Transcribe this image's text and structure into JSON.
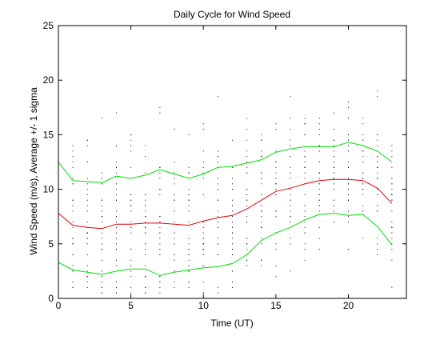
{
  "chart_data": {
    "type": "line",
    "title": "Daily Cycle for Wind Speed",
    "xlabel": "Time (UT)",
    "ylabel": "Wind Speed (m/s), Average +/- 1 sigma",
    "xlim": [
      0,
      24
    ],
    "ylim": [
      0,
      25
    ],
    "xticks": [
      0,
      5,
      10,
      15,
      20
    ],
    "yticks": [
      0,
      5,
      10,
      15,
      20,
      25
    ],
    "grid": false,
    "x": [
      0,
      1,
      2,
      3,
      4,
      5,
      6,
      7,
      8,
      9,
      10,
      11,
      12,
      13,
      14,
      15,
      16,
      17,
      18,
      19,
      20,
      21,
      22,
      23
    ],
    "series": [
      {
        "color": "#00dd00",
        "values": [
          12.5,
          10.8,
          10.7,
          10.6,
          11.2,
          11.0,
          11.3,
          11.8,
          11.4,
          11.0,
          11.4,
          12.0,
          12.1,
          12.4,
          12.7,
          13.4,
          13.7,
          13.9,
          13.9,
          13.9,
          14.3,
          14.0,
          13.5,
          12.5
        ]
      },
      {
        "color": "#dd0000",
        "values": [
          7.8,
          6.7,
          6.5,
          6.4,
          6.8,
          6.8,
          6.9,
          6.9,
          6.8,
          6.7,
          7.1,
          7.4,
          7.6,
          8.2,
          9.0,
          9.8,
          10.1,
          10.5,
          10.8,
          10.9,
          10.9,
          10.8,
          10.1,
          8.7
        ]
      },
      {
        "color": "#00dd00",
        "values": [
          3.3,
          2.6,
          2.4,
          2.2,
          2.5,
          2.7,
          2.7,
          2.1,
          2.4,
          2.6,
          2.8,
          2.9,
          3.2,
          4.0,
          5.3,
          6.0,
          6.5,
          7.2,
          7.7,
          7.8,
          7.6,
          7.7,
          6.6,
          4.9
        ]
      }
    ],
    "scatter": {
      "color": "#000000",
      "note": "individual observations plotted as dots at each hour",
      "points_per_hour": 30
    }
  }
}
